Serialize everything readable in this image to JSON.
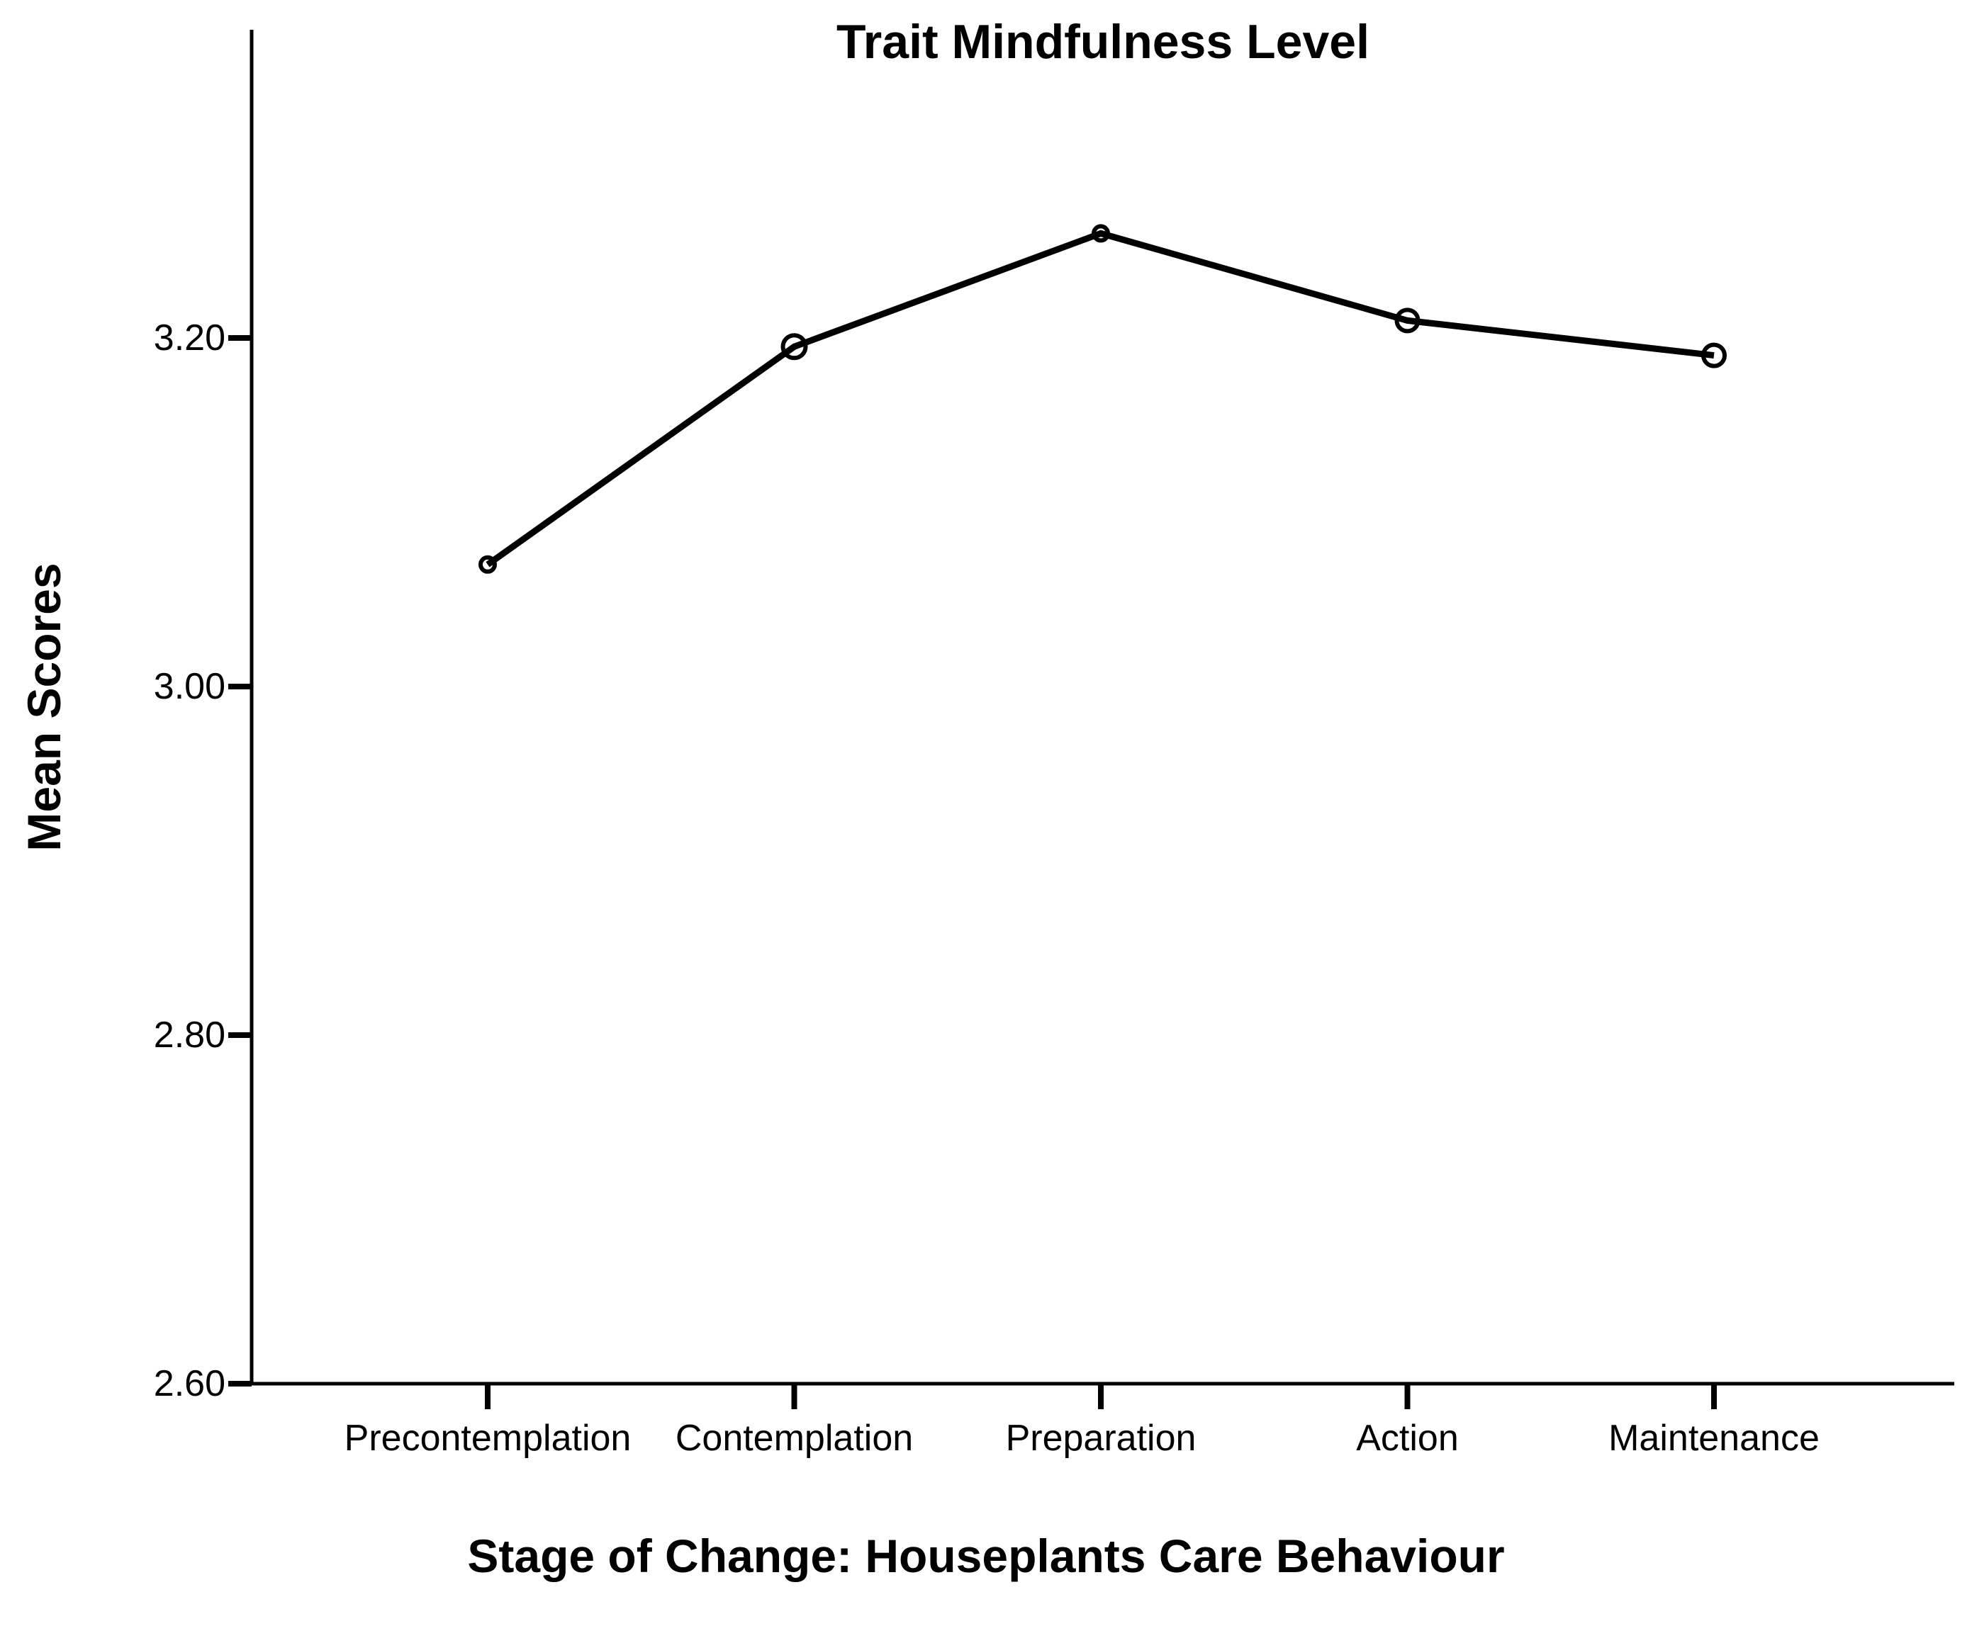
{
  "chart_data": {
    "type": "line",
    "title": "Trait Mindfulness Level",
    "xlabel": "Stage of Change: Houseplants Care Behaviour",
    "ylabel": "Mean Scores",
    "categories": [
      "Precontemplation",
      "Contemplation",
      "Preparation",
      "Action",
      "Maintenance"
    ],
    "values": [
      3.07,
      3.195,
      3.26,
      3.21,
      3.19
    ],
    "y_ticks": [
      2.6,
      2.8,
      3.0,
      3.2
    ],
    "y_tick_labels": [
      "2.60",
      "2.80",
      "3.00",
      "3.20"
    ],
    "ylim": [
      2.6,
      3.38
    ],
    "grid": false,
    "legend": "none",
    "line_color": "#000000",
    "axis_color": "#000000",
    "background": "#ffffff",
    "marker": "open-circle",
    "marker_radii": [
      10,
      16,
      10,
      15,
      15
    ]
  }
}
